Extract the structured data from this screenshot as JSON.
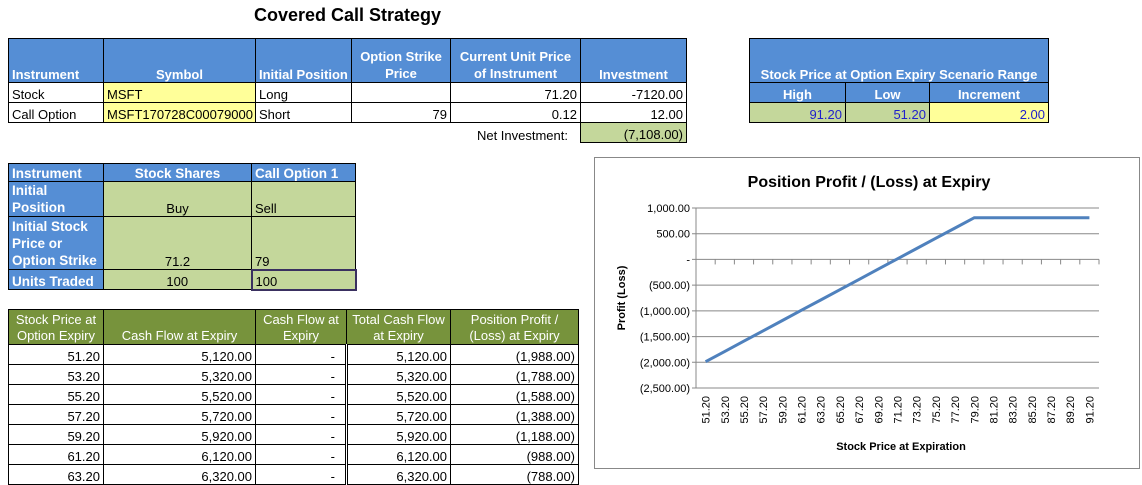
{
  "title": "Covered Call Strategy",
  "instruments": {
    "headers": [
      "Instrument",
      "Symbol",
      "Initial Position",
      "Option Strike Price",
      "Current Unit Price of Instrument",
      "Investment"
    ],
    "rows": [
      {
        "instrument": "Stock",
        "symbol": "MSFT",
        "position": "Long",
        "strike": "",
        "price": "71.20",
        "investment": "-7120.00"
      },
      {
        "instrument": "Call Option",
        "symbol": "MSFT170728C00079000",
        "position": "Short",
        "strike": "79",
        "price": "0.12",
        "investment": "12.00"
      }
    ],
    "net_label": "Net Investment:",
    "net_value": "(7,108.00)"
  },
  "scenario": {
    "title": "Stock Price at Option Expiry Scenario Range",
    "headers": [
      "High",
      "Low",
      "Increment"
    ],
    "values": [
      "91.20",
      "51.20",
      "2.00"
    ]
  },
  "positions": {
    "headers": [
      "Instrument",
      "Stock Shares",
      "Call Option 1"
    ],
    "rows": [
      {
        "label": "Initial Position",
        "stock": "Buy",
        "call": "Sell"
      },
      {
        "label": "Initial Stock Price or Option Strike",
        "stock": "71.2",
        "call": "79"
      },
      {
        "label": "Units Traded",
        "stock": "100",
        "call": "100"
      }
    ]
  },
  "payoff": {
    "headers": [
      "Stock Price at Option Expiry",
      "Cash Flow at Expiry",
      "Cash Flow at Expiry",
      "Total Cash Flow at Expiry",
      "Position Profit / (Loss) at Expiry"
    ],
    "rows": [
      [
        "51.20",
        "5,120.00",
        "-",
        "5,120.00",
        "(1,988.00)"
      ],
      [
        "53.20",
        "5,320.00",
        "-",
        "5,320.00",
        "(1,788.00)"
      ],
      [
        "55.20",
        "5,520.00",
        "-",
        "5,520.00",
        "(1,588.00)"
      ],
      [
        "57.20",
        "5,720.00",
        "-",
        "5,720.00",
        "(1,388.00)"
      ],
      [
        "59.20",
        "5,920.00",
        "-",
        "5,920.00",
        "(1,188.00)"
      ],
      [
        "61.20",
        "6,120.00",
        "-",
        "6,120.00",
        "(988.00)"
      ],
      [
        "63.20",
        "6,320.00",
        "-",
        "6,320.00",
        "(788.00)"
      ]
    ]
  },
  "chart_data": {
    "type": "line",
    "title": "Position Profit / (Loss) at Expiry",
    "xlabel": "Stock Price at Expiration",
    "ylabel": "Profit (Loss)",
    "ylim": [
      -2500,
      1000
    ],
    "yticks": [
      1000,
      500,
      0,
      -500,
      -1000,
      -1500,
      -2000,
      -2500
    ],
    "ytick_labels": [
      "1,000.00",
      "500.00",
      "-",
      "(500.00)",
      "(1,000.00)",
      "(1,500.00)",
      "(2,000.00)",
      "(2,500.00)"
    ],
    "categories": [
      "51.20",
      "53.20",
      "55.20",
      "57.20",
      "59.20",
      "61.20",
      "63.20",
      "65.20",
      "67.20",
      "69.20",
      "71.20",
      "73.20",
      "75.20",
      "77.20",
      "79.20",
      "81.20",
      "83.20",
      "85.20",
      "87.20",
      "89.20",
      "91.20"
    ],
    "series": [
      {
        "name": "Position Profit / (Loss) at Expiry",
        "color": "#4F81BD",
        "values": [
          -1988,
          -1788,
          -1588,
          -1388,
          -1188,
          -988,
          -788,
          -588,
          -388,
          -188,
          12,
          212,
          412,
          612,
          812,
          812,
          812,
          812,
          812,
          812,
          812
        ]
      }
    ],
    "grid": true,
    "legend": "none"
  }
}
